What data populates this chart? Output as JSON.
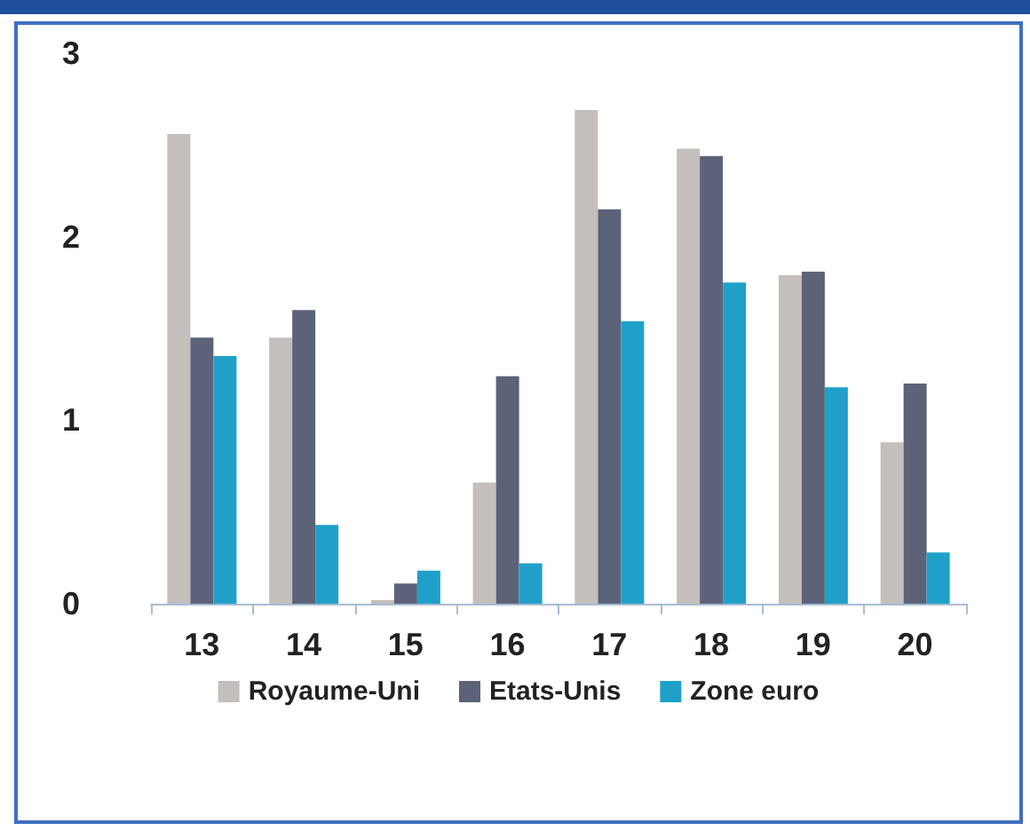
{
  "chart_data": {
    "type": "bar",
    "categories": [
      "13",
      "14",
      "15",
      "16",
      "17",
      "18",
      "19",
      "20"
    ],
    "series": [
      {
        "name": "Royaume-Uni",
        "color": "#c4bebc",
        "values": [
          2.56,
          1.45,
          0.02,
          0.66,
          2.69,
          2.48,
          1.79,
          0.88
        ]
      },
      {
        "name": "Etats-Unis",
        "color": "#5c6378",
        "values": [
          1.45,
          1.6,
          0.11,
          1.24,
          2.15,
          2.44,
          1.81,
          1.2
        ]
      },
      {
        "name": "Zone euro",
        "color": "#20a0c8",
        "values": [
          1.35,
          0.43,
          0.18,
          0.22,
          1.54,
          1.75,
          1.18,
          0.28
        ]
      }
    ],
    "ylim": [
      0,
      3
    ],
    "yticks": [
      0,
      1,
      2,
      3
    ],
    "grid": false,
    "legend": "bottom"
  }
}
